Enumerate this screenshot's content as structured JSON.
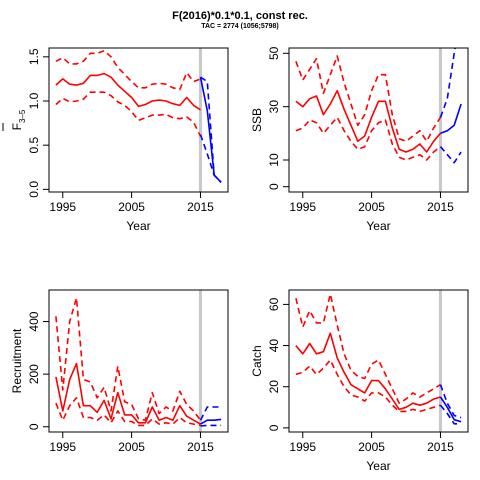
{
  "figure": {
    "title": "F(2016)*0.1*0.1, const rec.",
    "subtitle": "TAC = 2774 (1056;5798)",
    "colors": {
      "historic": "#ff0000",
      "projection": "#0000ff",
      "divider": "#c8c8c8"
    }
  },
  "chart_data": [
    {
      "id": "fbar",
      "type": "line",
      "xlabel": "Year",
      "ylabel_main": "F",
      "ylabel_sub": "3–5",
      "xlim": [
        1993,
        2019
      ],
      "ylim": [
        -0.03,
        1.6
      ],
      "xticks": [
        1995,
        2005,
        2015
      ],
      "xtick_labels": [
        "1995",
        "2005",
        "2015"
      ],
      "yticks": [
        0.0,
        0.5,
        1.0,
        1.5
      ],
      "ytick_labels": [
        "0.0",
        "0.5",
        "1.0",
        "1.5"
      ],
      "divider_x": 2015,
      "series": [
        {
          "role": "historic",
          "style": "solid",
          "x": [
            1994,
            1995,
            1996,
            1997,
            1998,
            1999,
            2000,
            2001,
            2002,
            2003,
            2004,
            2005,
            2006,
            2007,
            2008,
            2009,
            2010,
            2011,
            2012,
            2013,
            2014,
            2015
          ],
          "y": [
            1.18,
            1.25,
            1.19,
            1.18,
            1.2,
            1.29,
            1.29,
            1.31,
            1.27,
            1.18,
            1.11,
            1.04,
            0.94,
            0.96,
            1.0,
            1.01,
            1.0,
            0.97,
            0.95,
            1.04,
            0.95,
            0.9
          ]
        },
        {
          "role": "historic",
          "style": "dashed",
          "x": [
            1994,
            1995,
            1996,
            1997,
            1998,
            1999,
            2000,
            2001,
            2002,
            2003,
            2004,
            2005,
            2006,
            2007,
            2008,
            2009,
            2010,
            2011,
            2012,
            2013,
            2014,
            2015
          ],
          "y": [
            1.45,
            1.49,
            1.42,
            1.42,
            1.45,
            1.54,
            1.54,
            1.57,
            1.5,
            1.38,
            1.3,
            1.22,
            1.15,
            1.15,
            1.19,
            1.2,
            1.19,
            1.15,
            1.13,
            1.32,
            1.22,
            1.25
          ]
        },
        {
          "role": "historic",
          "style": "dashed",
          "x": [
            1994,
            1995,
            1996,
            1997,
            1998,
            1999,
            2000,
            2001,
            2002,
            2003,
            2004,
            2005,
            2006,
            2007,
            2008,
            2009,
            2010,
            2011,
            2012,
            2013,
            2014,
            2015
          ],
          "y": [
            0.96,
            1.03,
            0.99,
            1.0,
            1.02,
            1.1,
            1.1,
            1.1,
            1.06,
            0.99,
            0.95,
            0.88,
            0.78,
            0.81,
            0.84,
            0.84,
            0.85,
            0.81,
            0.8,
            0.82,
            0.76,
            0.6
          ]
        },
        {
          "role": "projection",
          "style": "solid",
          "x": [
            2015,
            2016,
            2017,
            2018
          ],
          "y": [
            1.27,
            0.89,
            0.16,
            0.08
          ]
        },
        {
          "role": "projection",
          "style": "dashed",
          "x": [
            2015,
            2016,
            2017,
            2018
          ],
          "y": [
            1.27,
            1.22,
            0.16,
            0.08
          ]
        },
        {
          "role": "projection",
          "style": "dashed",
          "x": [
            2015,
            2016,
            2017,
            2018
          ],
          "y": [
            0.62,
            0.4,
            0.16,
            0.08
          ]
        }
      ]
    },
    {
      "id": "ssb",
      "type": "line",
      "xlabel": "Year",
      "ylabel_main": "SSB",
      "ylabel_sub": "",
      "xlim": [
        1993,
        2019
      ],
      "ylim": [
        -2,
        52
      ],
      "xticks": [
        1995,
        2005,
        2015
      ],
      "xtick_labels": [
        "1995",
        "2005",
        "2015"
      ],
      "yticks": [
        0,
        10,
        30,
        50
      ],
      "ytick_labels": [
        "0",
        "10",
        "30",
        "50"
      ],
      "divider_x": 2015,
      "series": [
        {
          "role": "historic",
          "style": "solid",
          "x": [
            1994,
            1995,
            1996,
            1997,
            1998,
            1999,
            2000,
            2001,
            2002,
            2003,
            2004,
            2005,
            2006,
            2007,
            2008,
            2009,
            2010,
            2011,
            2012,
            2013,
            2014,
            2015
          ],
          "y": [
            32,
            30,
            33,
            34,
            27,
            31,
            36,
            29,
            23,
            17,
            19,
            26,
            32,
            32,
            22,
            14,
            13,
            14,
            16,
            13,
            17,
            20
          ]
        },
        {
          "role": "historic",
          "style": "dashed",
          "x": [
            1994,
            1995,
            1996,
            1997,
            1998,
            1999,
            2000,
            2001,
            2002,
            2003,
            2004,
            2005,
            2006,
            2007,
            2008,
            2009,
            2010,
            2011,
            2012,
            2013,
            2014,
            2015
          ],
          "y": [
            47,
            40,
            44,
            48,
            35,
            42,
            49,
            39,
            31,
            23,
            27,
            36,
            42,
            42,
            27,
            18,
            17,
            19,
            21,
            17,
            22,
            26
          ]
        },
        {
          "role": "historic",
          "style": "dashed",
          "x": [
            1994,
            1995,
            1996,
            1997,
            1998,
            1999,
            2000,
            2001,
            2002,
            2003,
            2004,
            2005,
            2006,
            2007,
            2008,
            2009,
            2010,
            2011,
            2012,
            2013,
            2014,
            2015
          ],
          "y": [
            21,
            22,
            25,
            24,
            20,
            23,
            26,
            21,
            17,
            14,
            15,
            21,
            24,
            25,
            16,
            11,
            10,
            11,
            12,
            10,
            13,
            15
          ]
        },
        {
          "role": "projection",
          "style": "solid",
          "x": [
            2015,
            2016,
            2017,
            2018
          ],
          "y": [
            20,
            21,
            23,
            31
          ]
        },
        {
          "role": "projection",
          "style": "dashed",
          "x": [
            2015,
            2016,
            2017,
            2018
          ],
          "y": [
            26,
            33,
            50,
            64
          ]
        },
        {
          "role": "projection",
          "style": "dashed",
          "x": [
            2015,
            2016,
            2017,
            2018
          ],
          "y": [
            15,
            12,
            9,
            13
          ]
        }
      ]
    },
    {
      "id": "recruitment",
      "type": "line",
      "xlabel": "",
      "ylabel_main": "Recruitment",
      "ylabel_sub": "",
      "xlim": [
        1993,
        2019
      ],
      "ylim": [
        -20,
        520
      ],
      "xticks": [
        1995,
        2005,
        2015
      ],
      "xtick_labels": [
        "1995",
        "2005",
        "2015"
      ],
      "yticks": [
        0,
        200,
        400
      ],
      "ytick_labels": [
        "0",
        "200",
        "400"
      ],
      "divider_x": 2015,
      "series": [
        {
          "role": "historic",
          "style": "solid",
          "x": [
            1994,
            1995,
            1996,
            1997,
            1998,
            1999,
            2000,
            2001,
            2002,
            2003,
            2004,
            2005,
            2006,
            2007,
            2008,
            2009,
            2010,
            2011,
            2012,
            2013,
            2014,
            2015
          ],
          "y": [
            190,
            60,
            180,
            240,
            80,
            80,
            55,
            100,
            30,
            130,
            45,
            45,
            15,
            15,
            75,
            25,
            35,
            25,
            80,
            40,
            25,
            10
          ]
        },
        {
          "role": "historic",
          "style": "dashed",
          "x": [
            1994,
            1995,
            1996,
            1997,
            1998,
            1999,
            2000,
            2001,
            2002,
            2003,
            2004,
            2005,
            2006,
            2007,
            2008,
            2009,
            2010,
            2011,
            2012,
            2013,
            2014,
            2015
          ],
          "y": [
            420,
            140,
            400,
            490,
            180,
            170,
            110,
            150,
            60,
            230,
            95,
            85,
            30,
            25,
            130,
            50,
            75,
            60,
            135,
            85,
            60,
            25
          ]
        },
        {
          "role": "historic",
          "style": "dashed",
          "x": [
            1994,
            1995,
            1996,
            1997,
            1998,
            1999,
            2000,
            2001,
            2002,
            2003,
            2004,
            2005,
            2006,
            2007,
            2008,
            2009,
            2010,
            2011,
            2012,
            2013,
            2014,
            2015
          ],
          "y": [
            90,
            25,
            80,
            110,
            35,
            35,
            25,
            45,
            15,
            60,
            20,
            20,
            5,
            5,
            30,
            10,
            15,
            10,
            35,
            15,
            10,
            5
          ]
        },
        {
          "role": "projection",
          "style": "solid",
          "x": [
            2015,
            2016,
            2017,
            2018
          ],
          "y": [
            10,
            25,
            25,
            28
          ]
        },
        {
          "role": "projection",
          "style": "dashed",
          "x": [
            2015,
            2016,
            2017,
            2018
          ],
          "y": [
            25,
            75,
            75,
            75
          ]
        },
        {
          "role": "projection",
          "style": "dashed",
          "x": [
            2015,
            2016,
            2017,
            2018
          ],
          "y": [
            3,
            5,
            5,
            5
          ]
        }
      ]
    },
    {
      "id": "catch",
      "type": "line",
      "xlabel": "Year",
      "ylabel_main": "Catch",
      "ylabel_sub": "",
      "xlim": [
        1993,
        2019
      ],
      "ylim": [
        -2,
        67
      ],
      "xticks": [
        1995,
        2005,
        2015
      ],
      "xtick_labels": [
        "1995",
        "2005",
        "2015"
      ],
      "yticks": [
        0,
        20,
        40,
        60
      ],
      "ytick_labels": [
        "0",
        "20",
        "40",
        "60"
      ],
      "divider_x": 2015,
      "series": [
        {
          "role": "historic",
          "style": "solid",
          "x": [
            1994,
            1995,
            1996,
            1997,
            1998,
            1999,
            2000,
            2001,
            2002,
            2003,
            2004,
            2005,
            2006,
            2007,
            2008,
            2009,
            2010,
            2011,
            2012,
            2013,
            2014,
            2015
          ],
          "y": [
            40,
            36,
            41,
            36,
            37,
            46,
            34,
            27,
            21,
            19,
            17,
            23,
            23,
            19,
            14,
            9,
            10,
            12,
            11,
            12,
            14,
            15
          ]
        },
        {
          "role": "historic",
          "style": "dashed",
          "x": [
            1994,
            1995,
            1996,
            1997,
            1998,
            1999,
            2000,
            2001,
            2002,
            2003,
            2004,
            2005,
            2006,
            2007,
            2008,
            2009,
            2010,
            2011,
            2012,
            2013,
            2014,
            2015
          ],
          "y": [
            63,
            49,
            57,
            51,
            51,
            65,
            50,
            36,
            28,
            25,
            24,
            31,
            33,
            26,
            19,
            12,
            14,
            17,
            15,
            17,
            19,
            21
          ]
        },
        {
          "role": "historic",
          "style": "dashed",
          "x": [
            1994,
            1995,
            1996,
            1997,
            1998,
            1999,
            2000,
            2001,
            2002,
            2003,
            2004,
            2005,
            2006,
            2007,
            2008,
            2009,
            2010,
            2011,
            2012,
            2013,
            2014,
            2015
          ],
          "y": [
            26,
            27,
            30,
            26,
            29,
            33,
            26,
            20,
            16,
            15,
            13,
            17,
            17,
            15,
            11,
            8,
            8,
            9,
            8,
            9,
            10,
            11
          ]
        },
        {
          "role": "projection",
          "style": "solid",
          "x": [
            2015,
            2016,
            2017,
            2018
          ],
          "y": [
            15,
            10,
            4,
            3
          ]
        },
        {
          "role": "projection",
          "style": "dashed",
          "x": [
            2015,
            2016,
            2017,
            2018
          ],
          "y": [
            21,
            12,
            6,
            5
          ]
        },
        {
          "role": "projection",
          "style": "dashed",
          "x": [
            2015,
            2016,
            2017,
            2018
          ],
          "y": [
            11,
            7,
            2,
            2
          ]
        }
      ]
    }
  ]
}
